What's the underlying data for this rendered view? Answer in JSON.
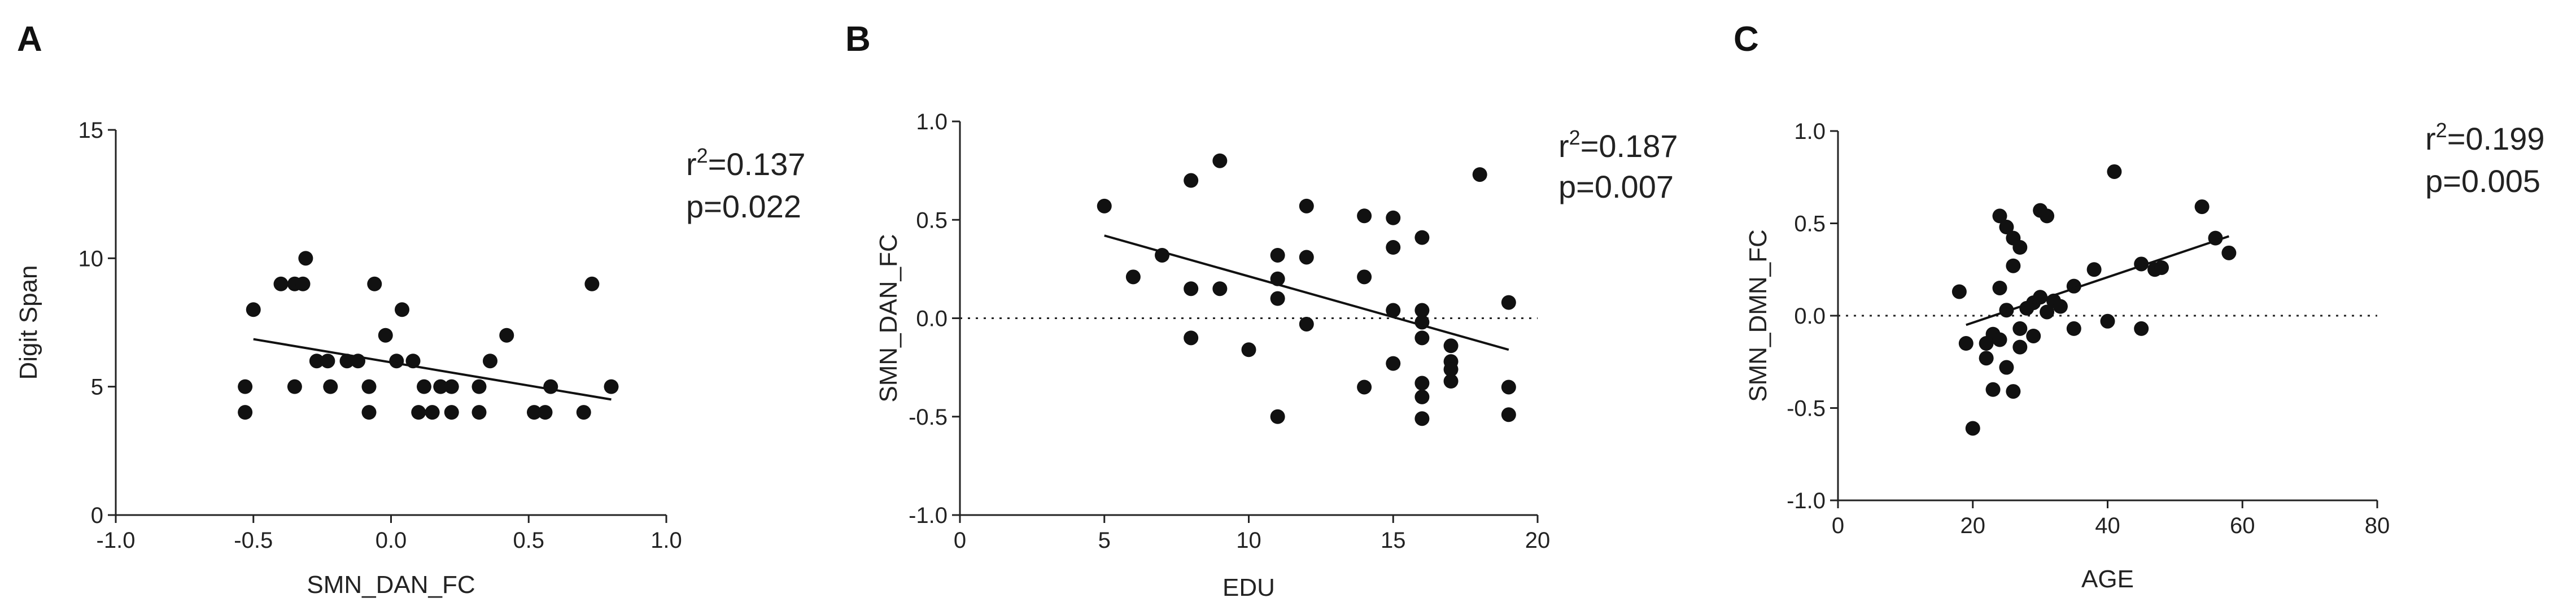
{
  "chart_data": [
    {
      "type": "scatter",
      "panel": "A",
      "xlabel": "SMN_DAN_FC",
      "ylabel": "Digit Span",
      "xlim": [
        -1.0,
        1.0
      ],
      "ylim": [
        0,
        15
      ],
      "xticks": [
        "-1.0",
        "-0.5",
        "0.0",
        "0.5",
        "1.0"
      ],
      "yticks": [
        "0",
        "5",
        "10",
        "15"
      ],
      "x_zero_tick": "0.0",
      "grid": false,
      "reference_line": null,
      "r2_text": "=0.137",
      "p_text": "p=0.022",
      "fit": {
        "x": [
          -0.5,
          0.8
        ],
        "y": [
          6.85,
          4.5
        ]
      },
      "points": [
        {
          "x": -0.53,
          "y": 5
        },
        {
          "x": -0.53,
          "y": 4
        },
        {
          "x": -0.5,
          "y": 8
        },
        {
          "x": -0.4,
          "y": 9
        },
        {
          "x": -0.35,
          "y": 9
        },
        {
          "x": -0.32,
          "y": 9
        },
        {
          "x": -0.31,
          "y": 10
        },
        {
          "x": -0.35,
          "y": 5
        },
        {
          "x": -0.27,
          "y": 6
        },
        {
          "x": -0.23,
          "y": 6
        },
        {
          "x": -0.22,
          "y": 5
        },
        {
          "x": -0.16,
          "y": 6
        },
        {
          "x": -0.12,
          "y": 6
        },
        {
          "x": -0.08,
          "y": 5
        },
        {
          "x": -0.08,
          "y": 4
        },
        {
          "x": -0.06,
          "y": 9
        },
        {
          "x": -0.02,
          "y": 7
        },
        {
          "x": 0.02,
          "y": 6
        },
        {
          "x": 0.04,
          "y": 8
        },
        {
          "x": 0.08,
          "y": 6
        },
        {
          "x": 0.1,
          "y": 4
        },
        {
          "x": 0.12,
          "y": 5
        },
        {
          "x": 0.15,
          "y": 4
        },
        {
          "x": 0.18,
          "y": 5
        },
        {
          "x": 0.22,
          "y": 5
        },
        {
          "x": 0.22,
          "y": 4
        },
        {
          "x": 0.32,
          "y": 5
        },
        {
          "x": 0.32,
          "y": 4
        },
        {
          "x": 0.36,
          "y": 6
        },
        {
          "x": 0.42,
          "y": 7
        },
        {
          "x": 0.52,
          "y": 4
        },
        {
          "x": 0.56,
          "y": 4
        },
        {
          "x": 0.58,
          "y": 5
        },
        {
          "x": 0.7,
          "y": 4
        },
        {
          "x": 0.73,
          "y": 9
        },
        {
          "x": 0.8,
          "y": 5
        }
      ]
    },
    {
      "type": "scatter",
      "panel": "B",
      "xlabel": "EDU",
      "ylabel": "SMN_DAN_FC",
      "xlim": [
        0,
        20
      ],
      "ylim": [
        -1.0,
        1.0
      ],
      "xticks": [
        "0",
        "5",
        "10",
        "15",
        "20"
      ],
      "yticks": [
        "-1.0",
        "-0.5",
        "0.0",
        "0.5",
        "1.0"
      ],
      "grid": false,
      "reference_line": {
        "y": 0,
        "style": "dotted"
      },
      "r2_text": "=0.187",
      "p_text": "p=0.007",
      "fit": {
        "x": [
          5,
          19
        ],
        "y": [
          0.42,
          -0.16
        ]
      },
      "points": [
        {
          "x": 5,
          "y": 0.57
        },
        {
          "x": 6,
          "y": 0.21
        },
        {
          "x": 7,
          "y": 0.32
        },
        {
          "x": 8,
          "y": 0.7
        },
        {
          "x": 8,
          "y": 0.15
        },
        {
          "x": 8,
          "y": -0.1
        },
        {
          "x": 9,
          "y": 0.8
        },
        {
          "x": 9,
          "y": 0.15
        },
        {
          "x": 10,
          "y": -0.16
        },
        {
          "x": 11,
          "y": 0.32
        },
        {
          "x": 11,
          "y": 0.2
        },
        {
          "x": 11,
          "y": 0.1
        },
        {
          "x": 11,
          "y": -0.5
        },
        {
          "x": 12,
          "y": 0.57
        },
        {
          "x": 12,
          "y": 0.31
        },
        {
          "x": 12,
          "y": -0.03
        },
        {
          "x": 14,
          "y": 0.52
        },
        {
          "x": 14,
          "y": 0.21
        },
        {
          "x": 14,
          "y": -0.35
        },
        {
          "x": 15,
          "y": 0.51
        },
        {
          "x": 15,
          "y": 0.36
        },
        {
          "x": 15,
          "y": 0.04
        },
        {
          "x": 15,
          "y": -0.23
        },
        {
          "x": 16,
          "y": 0.41
        },
        {
          "x": 16,
          "y": 0.04
        },
        {
          "x": 16,
          "y": -0.02
        },
        {
          "x": 16,
          "y": -0.1
        },
        {
          "x": 16,
          "y": -0.33
        },
        {
          "x": 16,
          "y": -0.4
        },
        {
          "x": 16,
          "y": -0.51
        },
        {
          "x": 17,
          "y": -0.14
        },
        {
          "x": 17,
          "y": -0.22
        },
        {
          "x": 17,
          "y": -0.26
        },
        {
          "x": 17,
          "y": -0.32
        },
        {
          "x": 18,
          "y": 0.73
        },
        {
          "x": 19,
          "y": 0.08
        },
        {
          "x": 19,
          "y": -0.35
        },
        {
          "x": 19,
          "y": -0.49
        }
      ]
    },
    {
      "type": "scatter",
      "panel": "C",
      "xlabel": "AGE",
      "ylabel": "SMN_DMN_FC",
      "xlim": [
        0,
        80
      ],
      "ylim": [
        -1.0,
        1.0
      ],
      "xticks": [
        "0",
        "20",
        "40",
        "60",
        "80"
      ],
      "yticks": [
        "-1.0",
        "-0.5",
        "0.0",
        "0.5",
        "1.0"
      ],
      "grid": false,
      "reference_line": {
        "y": 0,
        "style": "dotted"
      },
      "r2_text": "=0.199",
      "p_text": "p=0.005",
      "fit": {
        "x": [
          19,
          58
        ],
        "y": [
          -0.05,
          0.43
        ]
      },
      "points": [
        {
          "x": 18,
          "y": 0.13
        },
        {
          "x": 19,
          "y": -0.15
        },
        {
          "x": 20,
          "y": -0.61
        },
        {
          "x": 22,
          "y": -0.23
        },
        {
          "x": 22,
          "y": -0.15
        },
        {
          "x": 23,
          "y": -0.1
        },
        {
          "x": 23,
          "y": -0.4
        },
        {
          "x": 24,
          "y": 0.54
        },
        {
          "x": 24,
          "y": 0.15
        },
        {
          "x": 24,
          "y": -0.13
        },
        {
          "x": 25,
          "y": 0.48
        },
        {
          "x": 25,
          "y": 0.03
        },
        {
          "x": 25,
          "y": -0.28
        },
        {
          "x": 26,
          "y": 0.42
        },
        {
          "x": 26,
          "y": 0.27
        },
        {
          "x": 26,
          "y": -0.41
        },
        {
          "x": 27,
          "y": 0.37
        },
        {
          "x": 27,
          "y": -0.07
        },
        {
          "x": 27,
          "y": -0.17
        },
        {
          "x": 28,
          "y": 0.04
        },
        {
          "x": 29,
          "y": 0.07
        },
        {
          "x": 29,
          "y": -0.11
        },
        {
          "x": 30,
          "y": 0.57
        },
        {
          "x": 30,
          "y": 0.1
        },
        {
          "x": 31,
          "y": 0.54
        },
        {
          "x": 31,
          "y": 0.02
        },
        {
          "x": 32,
          "y": 0.08
        },
        {
          "x": 33,
          "y": 0.05
        },
        {
          "x": 35,
          "y": 0.16
        },
        {
          "x": 35,
          "y": -0.07
        },
        {
          "x": 38,
          "y": 0.25
        },
        {
          "x": 40,
          "y": -0.03
        },
        {
          "x": 41,
          "y": 0.78
        },
        {
          "x": 45,
          "y": 0.28
        },
        {
          "x": 45,
          "y": -0.07
        },
        {
          "x": 47,
          "y": 0.25
        },
        {
          "x": 48,
          "y": 0.26
        },
        {
          "x": 54,
          "y": 0.59
        },
        {
          "x": 56,
          "y": 0.42
        },
        {
          "x": 58,
          "y": 0.34
        }
      ]
    }
  ]
}
